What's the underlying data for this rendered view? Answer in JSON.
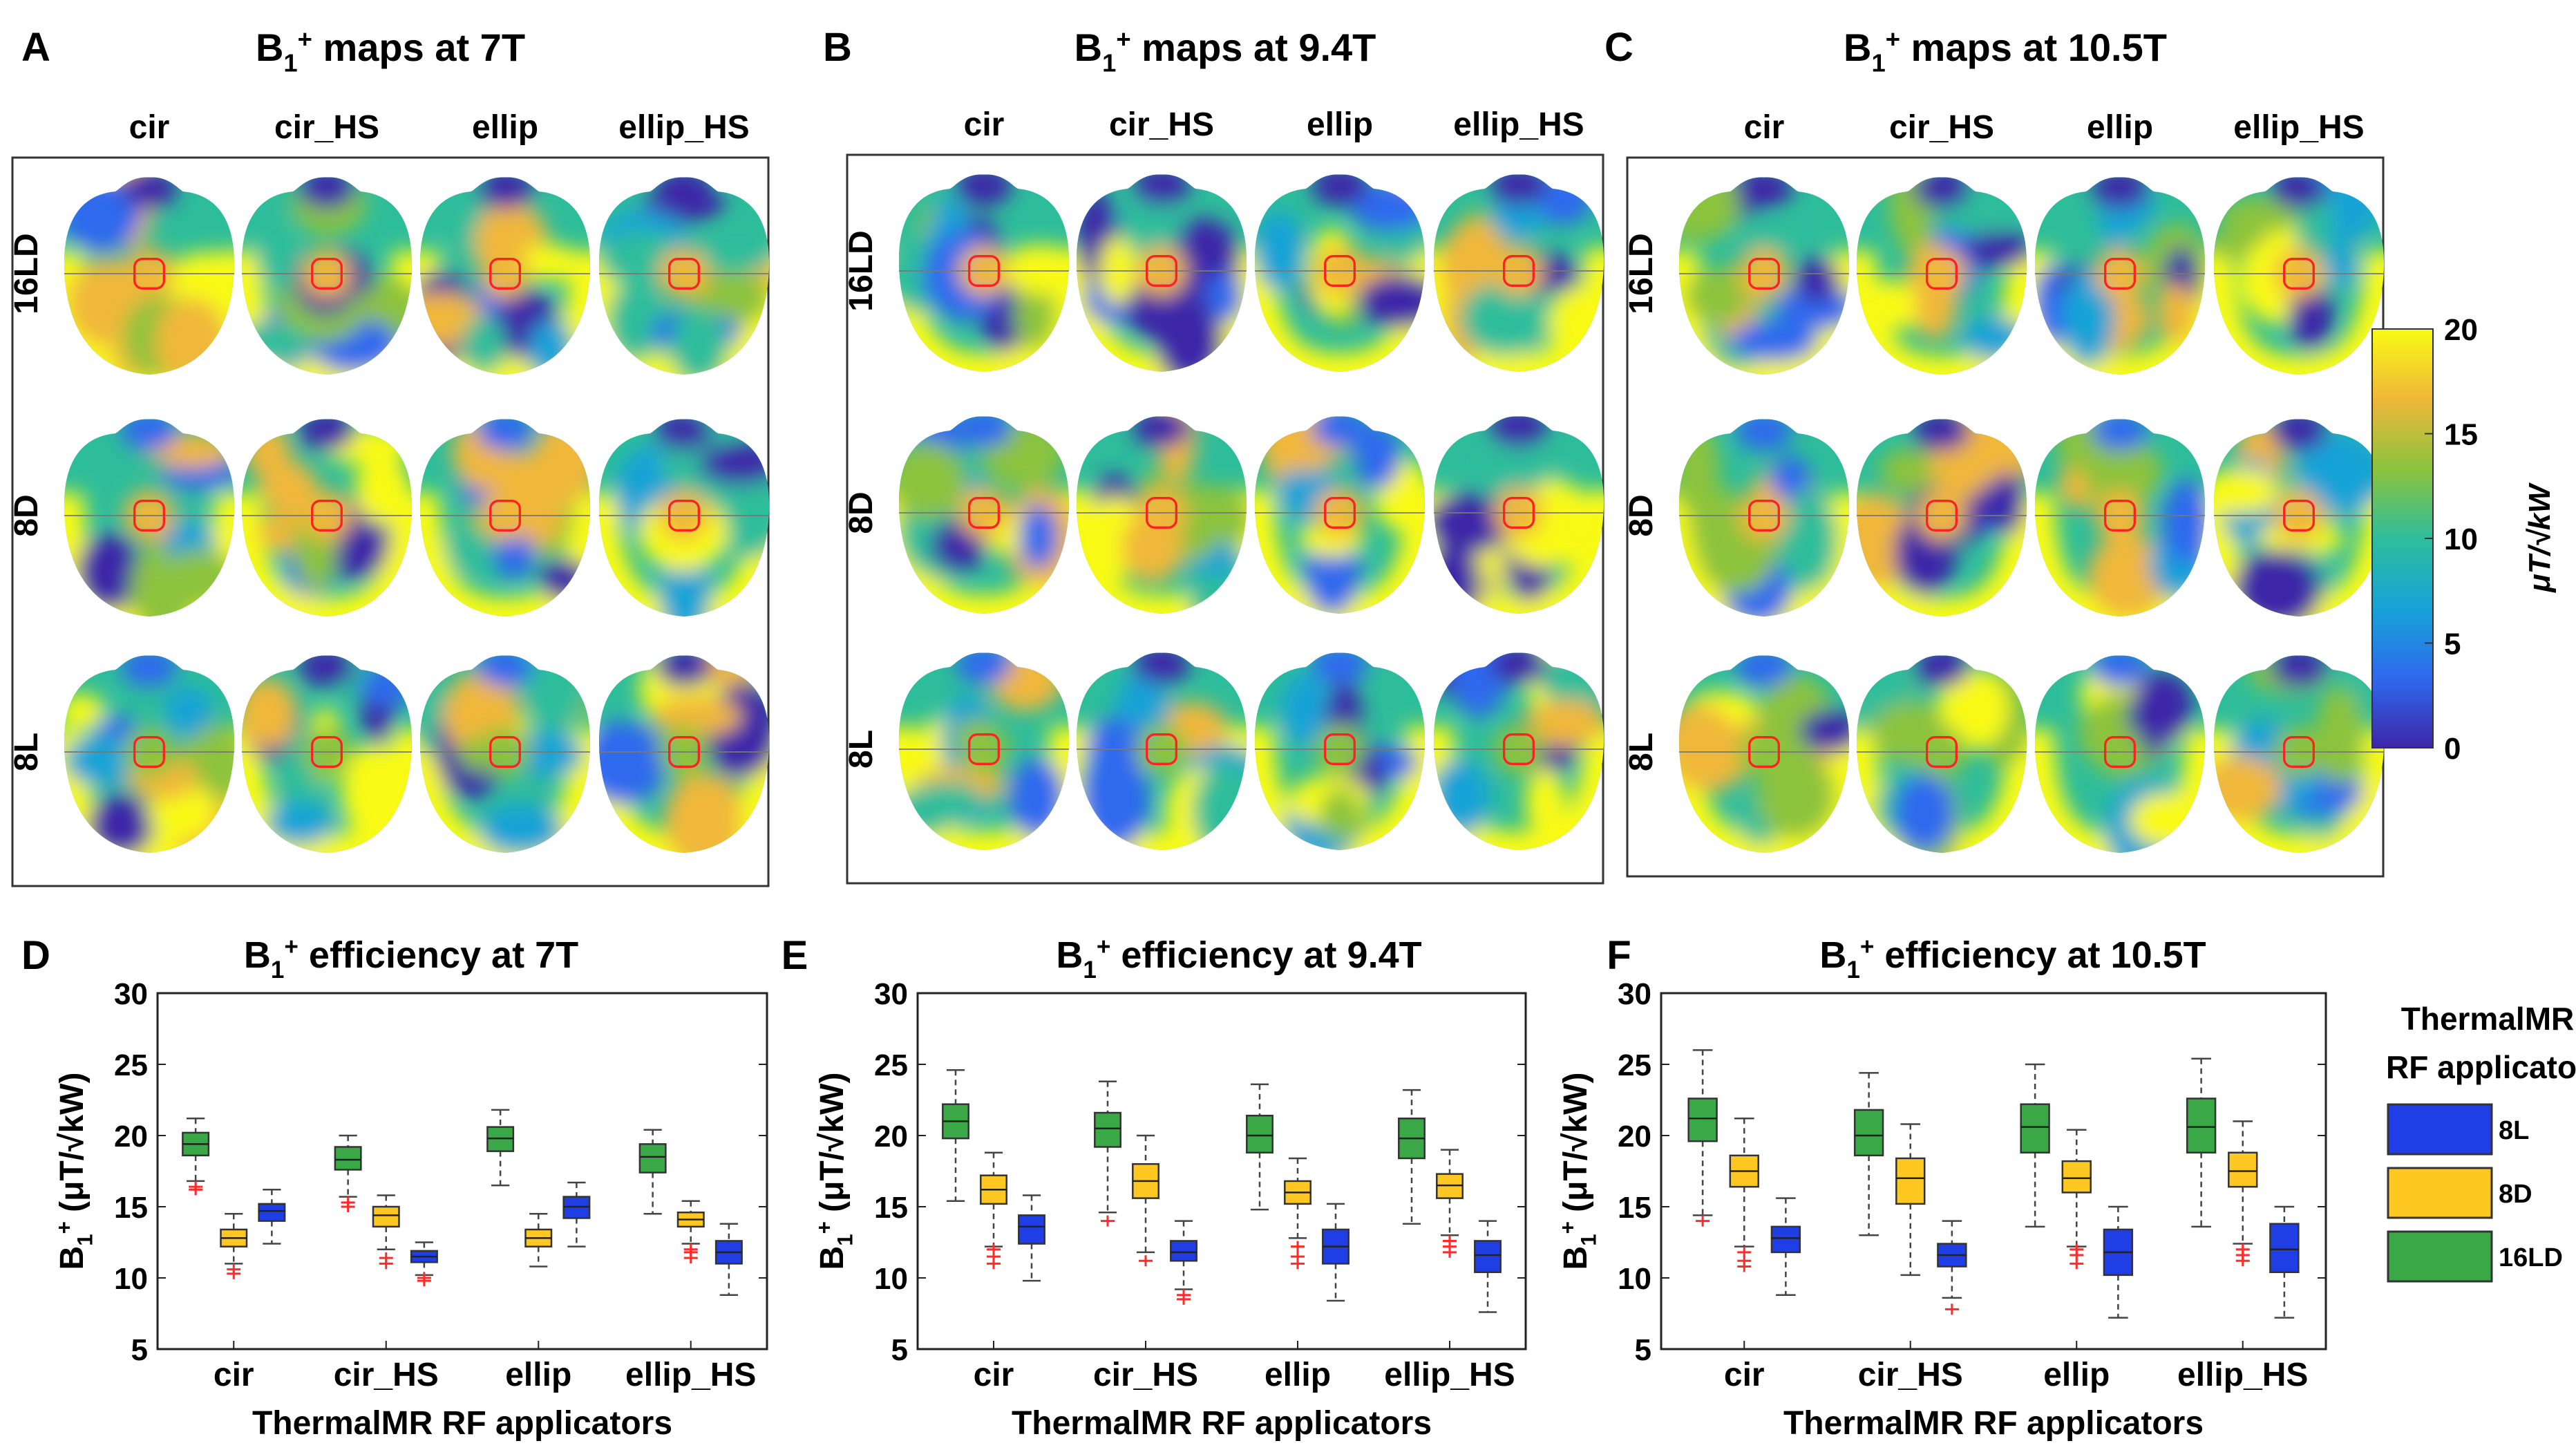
{
  "figure": {
    "panel_letters": [
      "A",
      "B",
      "C",
      "D",
      "E",
      "F"
    ],
    "maps": [
      {
        "title_prefix": "B",
        "title_sub": "1",
        "title_sup": "+",
        "title_rest": " maps at 7T"
      },
      {
        "title_prefix": "B",
        "title_sub": "1",
        "title_sup": "+",
        "title_rest": " maps at 9.4T"
      },
      {
        "title_prefix": "B",
        "title_sub": "1",
        "title_sup": "+",
        "title_rest": " maps at 10.5T"
      }
    ],
    "map_columns": [
      "cir",
      "cir_HS",
      "ellip",
      "ellip_HS"
    ],
    "map_rows": [
      "16LD",
      "8D",
      "8L"
    ],
    "colorbar": {
      "ticks": [
        "0",
        "5",
        "10",
        "15",
        "20"
      ],
      "label": "μT/√kW",
      "colors": [
        "#3e26a8",
        "#2f69ee",
        "#17a3d7",
        "#2ebd9b",
        "#8cc33e",
        "#f0b73a",
        "#f9fa13"
      ]
    }
  },
  "chart_data": [
    {
      "type": "box",
      "panel": "D",
      "title": "B1+ efficiency at 7T",
      "title_parts": {
        "prefix": "B",
        "sub": "1",
        "sup": "+",
        "rest": " efficiency at 7T"
      },
      "xlabel": "ThermalMR RF applicators",
      "ylabel": "B1+ (μT/√kW)",
      "ylabel_parts": {
        "prefix": "B",
        "sub": "1",
        "sup": "+",
        "rest": " (μT/√kW)"
      },
      "ylim": [
        5,
        30
      ],
      "yticks": [
        "5",
        "10",
        "15",
        "20",
        "25",
        "30"
      ],
      "categories": [
        "cir",
        "cir_HS",
        "ellip",
        "ellip_HS"
      ],
      "series": [
        {
          "name": "16LD",
          "color": "#3ba847",
          "boxes": [
            {
              "min": 16.8,
              "q1": 18.6,
              "median": 19.4,
              "q3": 20.2,
              "max": 21.2,
              "outliers": [
                16.2,
                16.4
              ]
            },
            {
              "min": 15.7,
              "q1": 17.6,
              "median": 18.3,
              "q3": 19.2,
              "max": 20.0,
              "outliers": [
                15.0,
                15.3
              ]
            },
            {
              "min": 16.5,
              "q1": 18.9,
              "median": 19.8,
              "q3": 20.6,
              "max": 21.8,
              "outliers": []
            },
            {
              "min": 14.5,
              "q1": 17.4,
              "median": 18.5,
              "q3": 19.4,
              "max": 20.4,
              "outliers": []
            }
          ]
        },
        {
          "name": "8D",
          "color": "#ffc722",
          "boxes": [
            {
              "min": 11.0,
              "q1": 12.2,
              "median": 12.8,
              "q3": 13.4,
              "max": 14.5,
              "outliers": [
                10.3,
                10.6
              ]
            },
            {
              "min": 12.0,
              "q1": 13.6,
              "median": 14.4,
              "q3": 15.0,
              "max": 15.8,
              "outliers": [
                11.0,
                11.4
              ]
            },
            {
              "min": 10.8,
              "q1": 12.2,
              "median": 12.8,
              "q3": 13.4,
              "max": 14.5,
              "outliers": []
            },
            {
              "min": 12.4,
              "q1": 13.6,
              "median": 14.1,
              "q3": 14.6,
              "max": 15.4,
              "outliers": [
                11.4,
                11.8,
                12.0
              ]
            }
          ]
        },
        {
          "name": "8L",
          "color": "#1f3ee6",
          "boxes": [
            {
              "min": 12.4,
              "q1": 14.0,
              "median": 14.7,
              "q3": 15.2,
              "max": 16.2,
              "outliers": []
            },
            {
              "min": 10.2,
              "q1": 11.1,
              "median": 11.5,
              "q3": 11.9,
              "max": 12.5,
              "outliers": [
                9.8,
                10.0
              ]
            },
            {
              "min": 12.2,
              "q1": 14.2,
              "median": 15.0,
              "q3": 15.7,
              "max": 16.7,
              "outliers": []
            },
            {
              "min": 8.8,
              "q1": 11.0,
              "median": 11.8,
              "q3": 12.6,
              "max": 13.8,
              "outliers": []
            }
          ]
        }
      ]
    },
    {
      "type": "box",
      "panel": "E",
      "title": "B1+ efficiency at 9.4T",
      "title_parts": {
        "prefix": "B",
        "sub": "1",
        "sup": "+",
        "rest": " efficiency at 9.4T"
      },
      "xlabel": "ThermalMR RF applicators",
      "ylabel": "B1+ (μT/√kW)",
      "ylabel_parts": {
        "prefix": "B",
        "sub": "1",
        "sup": "+",
        "rest": " (μT/√kW)"
      },
      "ylim": [
        5,
        30
      ],
      "yticks": [
        "5",
        "10",
        "15",
        "20",
        "25",
        "30"
      ],
      "categories": [
        "cir",
        "cir_HS",
        "ellip",
        "ellip_HS"
      ],
      "series": [
        {
          "name": "16LD",
          "color": "#3ba847",
          "boxes": [
            {
              "min": 15.4,
              "q1": 19.8,
              "median": 21.0,
              "q3": 22.2,
              "max": 24.6,
              "outliers": []
            },
            {
              "min": 14.6,
              "q1": 19.2,
              "median": 20.5,
              "q3": 21.6,
              "max": 23.8,
              "outliers": [
                14.0
              ]
            },
            {
              "min": 14.8,
              "q1": 18.8,
              "median": 20.0,
              "q3": 21.4,
              "max": 23.6,
              "outliers": []
            },
            {
              "min": 13.8,
              "q1": 18.4,
              "median": 19.8,
              "q3": 21.2,
              "max": 23.2,
              "outliers": []
            }
          ]
        },
        {
          "name": "8D",
          "color": "#ffc722",
          "boxes": [
            {
              "min": 12.2,
              "q1": 15.2,
              "median": 16.2,
              "q3": 17.2,
              "max": 18.8,
              "outliers": [
                11.0,
                11.5,
                12.0
              ]
            },
            {
              "min": 11.8,
              "q1": 15.6,
              "median": 16.8,
              "q3": 18.0,
              "max": 20.0,
              "outliers": [
                11.2
              ]
            },
            {
              "min": 12.8,
              "q1": 15.2,
              "median": 16.0,
              "q3": 16.8,
              "max": 18.4,
              "outliers": [
                11.0,
                11.5,
                12.2
              ]
            },
            {
              "min": 13.0,
              "q1": 15.6,
              "median": 16.5,
              "q3": 17.3,
              "max": 19.0,
              "outliers": [
                11.8,
                12.2,
                12.6
              ]
            }
          ]
        },
        {
          "name": "8L",
          "color": "#1f3ee6",
          "boxes": [
            {
              "min": 9.8,
              "q1": 12.4,
              "median": 13.6,
              "q3": 14.4,
              "max": 15.8,
              "outliers": []
            },
            {
              "min": 9.2,
              "q1": 11.2,
              "median": 11.8,
              "q3": 12.6,
              "max": 14.0,
              "outliers": [
                8.5,
                8.8
              ]
            },
            {
              "min": 8.4,
              "q1": 11.0,
              "median": 12.2,
              "q3": 13.4,
              "max": 15.2,
              "outliers": []
            },
            {
              "min": 7.6,
              "q1": 10.4,
              "median": 11.6,
              "q3": 12.6,
              "max": 14.0,
              "outliers": []
            }
          ]
        }
      ]
    },
    {
      "type": "box",
      "panel": "F",
      "title": "B1+ efficiency at 10.5T",
      "title_parts": {
        "prefix": "B",
        "sub": "1",
        "sup": "+",
        "rest": " efficiency at 10.5T"
      },
      "xlabel": "ThermalMR RF applicators",
      "ylabel": "B1+ (μT/√kW)",
      "ylabel_parts": {
        "prefix": "B",
        "sub": "1",
        "sup": "+",
        "rest": " (μT/√kW)"
      },
      "ylim": [
        5,
        30
      ],
      "yticks": [
        "5",
        "10",
        "15",
        "20",
        "25",
        "30"
      ],
      "categories": [
        "cir",
        "cir_HS",
        "ellip",
        "ellip_HS"
      ],
      "series": [
        {
          "name": "16LD",
          "color": "#3ba847",
          "boxes": [
            {
              "min": 14.4,
              "q1": 19.6,
              "median": 21.2,
              "q3": 22.6,
              "max": 26.0,
              "outliers": [
                14.0
              ]
            },
            {
              "min": 13.0,
              "q1": 18.6,
              "median": 20.0,
              "q3": 21.8,
              "max": 24.4,
              "outliers": []
            },
            {
              "min": 13.6,
              "q1": 18.8,
              "median": 20.6,
              "q3": 22.2,
              "max": 25.0,
              "outliers": []
            },
            {
              "min": 13.6,
              "q1": 18.8,
              "median": 20.6,
              "q3": 22.6,
              "max": 25.4,
              "outliers": []
            }
          ]
        },
        {
          "name": "8D",
          "color": "#ffc722",
          "boxes": [
            {
              "min": 12.2,
              "q1": 16.4,
              "median": 17.5,
              "q3": 18.6,
              "max": 21.2,
              "outliers": [
                10.8,
                11.2,
                11.8
              ]
            },
            {
              "min": 10.2,
              "q1": 15.2,
              "median": 17.0,
              "q3": 18.4,
              "max": 20.8,
              "outliers": []
            },
            {
              "min": 12.2,
              "q1": 16.0,
              "median": 17.0,
              "q3": 18.2,
              "max": 20.4,
              "outliers": [
                11.0,
                11.6,
                12.0
              ]
            },
            {
              "min": 12.4,
              "q1": 16.4,
              "median": 17.5,
              "q3": 18.8,
              "max": 21.0,
              "outliers": [
                11.2,
                11.6,
                12.0
              ]
            }
          ]
        },
        {
          "name": "8L",
          "color": "#1f3ee6",
          "boxes": [
            {
              "min": 8.8,
              "q1": 11.8,
              "median": 12.8,
              "q3": 13.6,
              "max": 15.6,
              "outliers": []
            },
            {
              "min": 8.6,
              "q1": 10.8,
              "median": 11.6,
              "q3": 12.4,
              "max": 14.0,
              "outliers": [
                7.8
              ]
            },
            {
              "min": 7.2,
              "q1": 10.2,
              "median": 11.8,
              "q3": 13.4,
              "max": 15.0,
              "outliers": []
            },
            {
              "min": 7.2,
              "q1": 10.4,
              "median": 12.0,
              "q3": 13.8,
              "max": 15.0,
              "outliers": []
            }
          ]
        }
      ]
    }
  ],
  "legend": {
    "title_line1": "ThermalMR",
    "title_line2": "RF applicator",
    "items": [
      {
        "name": "8L",
        "color": "#1f3ee6"
      },
      {
        "name": "8D",
        "color": "#ffc722"
      },
      {
        "name": "16LD",
        "color": "#3ba847"
      }
    ]
  }
}
